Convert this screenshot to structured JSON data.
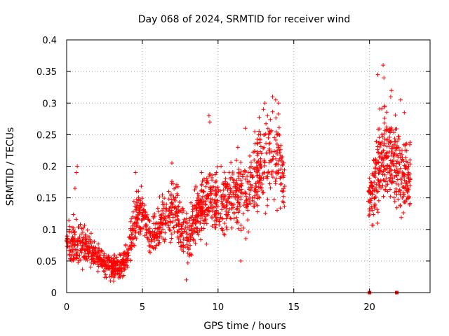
{
  "chart_data": {
    "type": "scatter",
    "title": "Day 068 of 2024, SRMTID for receiver wind",
    "xlabel": "GPS time / hours",
    "ylabel": "SRMTID / TECUs",
    "xlim": [
      0,
      24
    ],
    "ylim": [
      0,
      0.4
    ],
    "xticks": [
      0,
      5,
      10,
      15,
      20
    ],
    "xtick_labels": [
      "0",
      "5",
      "10",
      "15",
      "20"
    ],
    "yticks": [
      0,
      0.05,
      0.1,
      0.15,
      0.2,
      0.25,
      0.3,
      0.35,
      0.4
    ],
    "ytick_labels": [
      "0",
      "0.05",
      "0.1",
      "0.15",
      "0.2",
      "0.25",
      "0.3",
      "0.35",
      "0.4"
    ],
    "grid": true,
    "marker": "plus",
    "color": "#ff0000",
    "series": [
      {
        "name": "SRMTID",
        "trend_profile": [
          [
            0.0,
            0.085,
            0.02
          ],
          [
            0.5,
            0.075,
            0.025
          ],
          [
            1.0,
            0.075,
            0.02
          ],
          [
            1.5,
            0.07,
            0.02
          ],
          [
            2.0,
            0.06,
            0.012
          ],
          [
            2.5,
            0.045,
            0.012
          ],
          [
            3.0,
            0.042,
            0.012
          ],
          [
            3.5,
            0.04,
            0.012
          ],
          [
            4.0,
            0.055,
            0.015
          ],
          [
            4.5,
            0.11,
            0.03
          ],
          [
            5.0,
            0.13,
            0.025
          ],
          [
            5.5,
            0.085,
            0.02
          ],
          [
            6.0,
            0.1,
            0.02
          ],
          [
            6.5,
            0.12,
            0.03
          ],
          [
            7.0,
            0.13,
            0.03
          ],
          [
            7.5,
            0.115,
            0.025
          ],
          [
            8.0,
            0.085,
            0.03
          ],
          [
            8.5,
            0.12,
            0.03
          ],
          [
            9.0,
            0.14,
            0.03
          ],
          [
            9.5,
            0.155,
            0.035
          ],
          [
            10.0,
            0.14,
            0.03
          ],
          [
            10.5,
            0.135,
            0.035
          ],
          [
            11.0,
            0.16,
            0.035
          ],
          [
            11.5,
            0.15,
            0.04
          ],
          [
            12.0,
            0.16,
            0.04
          ],
          [
            12.5,
            0.19,
            0.04
          ],
          [
            13.0,
            0.2,
            0.045
          ],
          [
            13.5,
            0.22,
            0.05
          ],
          [
            14.0,
            0.21,
            0.05
          ],
          [
            14.4,
            0.17,
            0.03
          ]
        ],
        "late_profile": [
          [
            19.9,
            0.14,
            0.02
          ],
          [
            20.3,
            0.17,
            0.035
          ],
          [
            20.7,
            0.2,
            0.05
          ],
          [
            21.2,
            0.22,
            0.05
          ],
          [
            21.7,
            0.21,
            0.05
          ],
          [
            22.2,
            0.18,
            0.04
          ],
          [
            22.7,
            0.18,
            0.04
          ]
        ],
        "spikes": [
          [
            0.65,
            0.19
          ],
          [
            0.7,
            0.2
          ],
          [
            0.55,
            0.165
          ],
          [
            4.55,
            0.19
          ],
          [
            6.95,
            0.205
          ],
          [
            9.4,
            0.28
          ],
          [
            9.45,
            0.27
          ],
          [
            10.2,
            0.2
          ],
          [
            11.3,
            0.23
          ],
          [
            11.8,
            0.26
          ],
          [
            13.0,
            0.29
          ],
          [
            13.1,
            0.3
          ],
          [
            13.6,
            0.31
          ],
          [
            13.8,
            0.305
          ],
          [
            14.0,
            0.3
          ],
          [
            20.55,
            0.345
          ],
          [
            20.9,
            0.36
          ],
          [
            20.95,
            0.34
          ],
          [
            21.4,
            0.31
          ],
          [
            21.45,
            0.32
          ],
          [
            22.05,
            0.305
          ],
          [
            22.3,
            0.285
          ],
          [
            7.9,
            0.02
          ],
          [
            11.5,
            0.05
          ],
          [
            3.1,
            0.018
          ]
        ],
        "zero_points": [
          [
            20.0,
            0.0
          ],
          [
            21.8,
            0.0
          ]
        ]
      }
    ]
  }
}
